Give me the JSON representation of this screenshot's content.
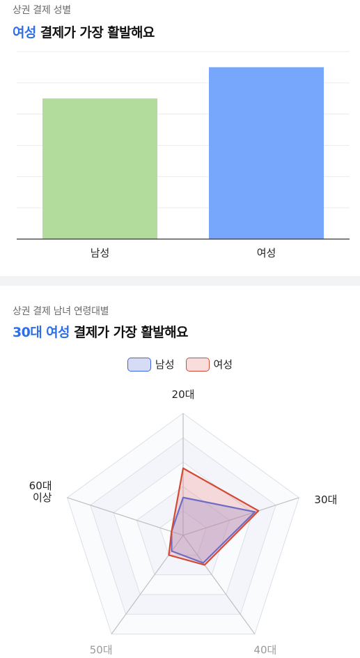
{
  "section1": {
    "subtitle": "상권 결제 성별",
    "title_accent": "여성",
    "title_rest": " 결제가 가장 활발해요"
  },
  "section2": {
    "subtitle": "상권 결제 남녀 연령대별",
    "title_accent": "30대 여성",
    "title_rest": " 결제가 가장 활발해요"
  },
  "chart_data": [
    {
      "type": "bar",
      "categories": [
        "남성",
        "여성"
      ],
      "values": [
        45,
        55
      ],
      "ylim": [
        0,
        60
      ],
      "grid": true,
      "colors": [
        "#b2dc9b",
        "#77a6fd"
      ]
    },
    {
      "type": "radar",
      "axes": [
        "20대",
        "30대",
        "40대",
        "50대",
        "60대\n이상"
      ],
      "series": [
        {
          "name": "남성",
          "values": [
            31,
            62,
            28,
            16,
            10
          ],
          "stroke": "#3d64e0",
          "fill": "rgba(120,140,225,0.30)"
        },
        {
          "name": "여성",
          "values": [
            55,
            65,
            30,
            20,
            10
          ],
          "stroke": "#d24a36",
          "fill": "rgba(235,130,130,0.28)"
        }
      ],
      "rmax": 100,
      "levels": 5,
      "legend": "top"
    }
  ]
}
